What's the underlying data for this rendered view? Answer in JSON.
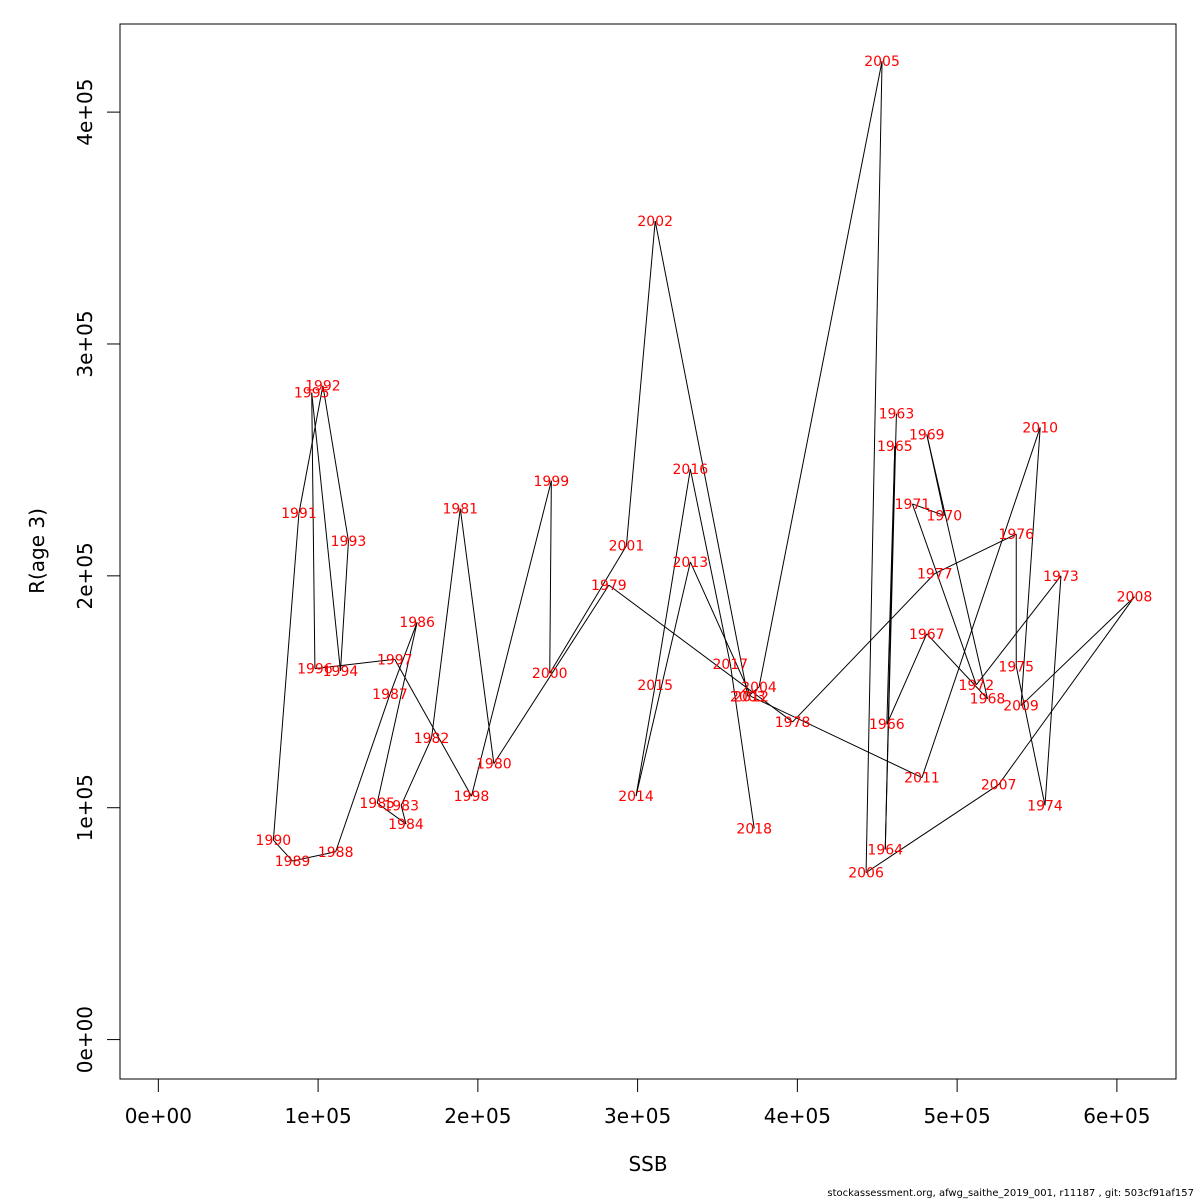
{
  "chart_data": {
    "type": "line",
    "xlabel": "SSB",
    "ylabel": "R(age 3)",
    "xlim": [
      -24000,
      637000
    ],
    "ylim": [
      -17000,
      438000
    ],
    "x_ticks": [
      0,
      100000,
      200000,
      300000,
      400000,
      500000,
      600000
    ],
    "x_tick_labels": [
      "0e+00",
      "1e+05",
      "2e+05",
      "3e+05",
      "4e+05",
      "5e+05",
      "6e+05"
    ],
    "y_ticks": [
      0,
      100000,
      200000,
      300000,
      400000
    ],
    "y_tick_labels": [
      "0e+00",
      "1e+05",
      "2e+05",
      "3e+05",
      "4e+05"
    ],
    "label_color": "#ff0000",
    "line_color": "#000000",
    "points": [
      {
        "year": "1963",
        "x": 462000,
        "y": 270000
      },
      {
        "year": "1964",
        "x": 455000,
        "y": 82000
      },
      {
        "year": "1965",
        "x": 461000,
        "y": 256000
      },
      {
        "year": "1966",
        "x": 456000,
        "y": 136000
      },
      {
        "year": "1967",
        "x": 481000,
        "y": 175000
      },
      {
        "year": "1968",
        "x": 519000,
        "y": 147000
      },
      {
        "year": "1969",
        "x": 481000,
        "y": 261000
      },
      {
        "year": "1970",
        "x": 492000,
        "y": 226000
      },
      {
        "year": "1971",
        "x": 472000,
        "y": 231000
      },
      {
        "year": "1972",
        "x": 512000,
        "y": 153000
      },
      {
        "year": "1973",
        "x": 565000,
        "y": 200000
      },
      {
        "year": "1974",
        "x": 555000,
        "y": 101000
      },
      {
        "year": "1975",
        "x": 537000,
        "y": 161000
      },
      {
        "year": "1976",
        "x": 537000,
        "y": 218000
      },
      {
        "year": "1977",
        "x": 486000,
        "y": 201000
      },
      {
        "year": "1978",
        "x": 397000,
        "y": 137000
      },
      {
        "year": "1979",
        "x": 282000,
        "y": 196000
      },
      {
        "year": "1980",
        "x": 210000,
        "y": 119000
      },
      {
        "year": "1981",
        "x": 189000,
        "y": 229000
      },
      {
        "year": "1982",
        "x": 171000,
        "y": 130000
      },
      {
        "year": "1983",
        "x": 152000,
        "y": 101000
      },
      {
        "year": "1984",
        "x": 155000,
        "y": 93000
      },
      {
        "year": "1985",
        "x": 137000,
        "y": 102000
      },
      {
        "year": "1986",
        "x": 162000,
        "y": 180000
      },
      {
        "year": "1987",
        "x": 145000,
        "y": 149000
      },
      {
        "year": "1988",
        "x": 111000,
        "y": 81000
      },
      {
        "year": "1989",
        "x": 84000,
        "y": 77000
      },
      {
        "year": "1990",
        "x": 72000,
        "y": 86000
      },
      {
        "year": "1991",
        "x": 88000,
        "y": 227000
      },
      {
        "year": "1992",
        "x": 103000,
        "y": 282000
      },
      {
        "year": "1993",
        "x": 119000,
        "y": 215000
      },
      {
        "year": "1994",
        "x": 114000,
        "y": 159000
      },
      {
        "year": "1995",
        "x": 96000,
        "y": 279000
      },
      {
        "year": "1996",
        "x": 98000,
        "y": 160000
      },
      {
        "year": "1997",
        "x": 148000,
        "y": 164000
      },
      {
        "year": "1998",
        "x": 196000,
        "y": 105000
      },
      {
        "year": "1999",
        "x": 246000,
        "y": 241000
      },
      {
        "year": "2000",
        "x": 245000,
        "y": 158000
      },
      {
        "year": "2001",
        "x": 293000,
        "y": 213000
      },
      {
        "year": "2002",
        "x": 311000,
        "y": 353000
      },
      {
        "year": "2003",
        "x": 369000,
        "y": 148000
      },
      {
        "year": "2004",
        "x": 376000,
        "y": 152000
      },
      {
        "year": "2005",
        "x": 453000,
        "y": 422000
      },
      {
        "year": "2006",
        "x": 443000,
        "y": 72000
      },
      {
        "year": "2007",
        "x": 526000,
        "y": 110000
      },
      {
        "year": "2008",
        "x": 611000,
        "y": 191000
      },
      {
        "year": "2009",
        "x": 540000,
        "y": 144000
      },
      {
        "year": "2010",
        "x": 552000,
        "y": 264000
      },
      {
        "year": "2011",
        "x": 478000,
        "y": 113000
      },
      {
        "year": "2012",
        "x": 371000,
        "y": 148000
      },
      {
        "year": "2013",
        "x": 333000,
        "y": 206000
      },
      {
        "year": "2014",
        "x": 299000,
        "y": 105000
      },
      {
        "year": "2015",
        "x": 311000,
        "y": 153000
      },
      {
        "year": "2016",
        "x": 333000,
        "y": 246000
      },
      {
        "year": "2017",
        "x": 358000,
        "y": 162000
      },
      {
        "year": "2018",
        "x": 373000,
        "y": 91000
      }
    ]
  },
  "footer": "stockassessment.org, afwg_saithe_2019_001, r11187 , git: 503cf91af157"
}
